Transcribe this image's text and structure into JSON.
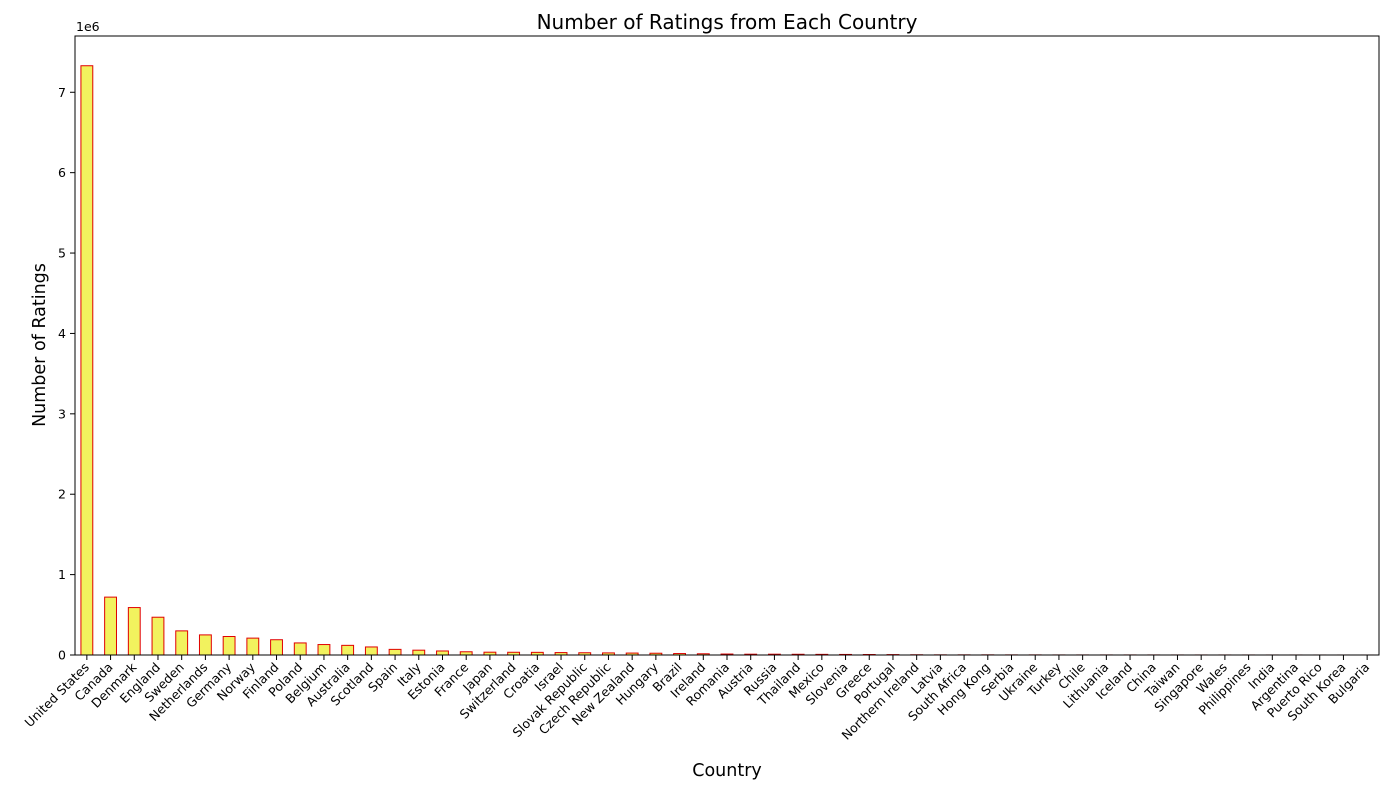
{
  "chart_data": {
    "type": "bar",
    "title": "Number of Ratings from Each Country",
    "xlabel": "Country",
    "ylabel": "Number of Ratings",
    "y_scale_label": "1e6",
    "ylim": [
      0,
      7.7
    ],
    "yticks": [
      "0",
      "1",
      "2",
      "3",
      "4",
      "5",
      "6",
      "7"
    ],
    "grid": false,
    "legend": "none",
    "bar_fill_color": "#f2f25e",
    "bar_edge_color": "#e00000",
    "categories": [
      "United States",
      "Canada",
      "Denmark",
      "England",
      "Sweden",
      "Netherlands",
      "Germany",
      "Norway",
      "Finland",
      "Poland",
      "Belgium",
      "Australia",
      "Scotland",
      "Spain",
      "Italy",
      "Estonia",
      "France",
      "Japan",
      "Switzerland",
      "Croatia",
      "Israel",
      "Slovak Republic",
      "Czech Republic",
      "New Zealand",
      "Hungary",
      "Brazil",
      "Ireland",
      "Romania",
      "Austria",
      "Russia",
      "Thailand",
      "Mexico",
      "Slovenia",
      "Greece",
      "Portugal",
      "Northern Ireland",
      "Latvia",
      "South Africa",
      "Hong Kong",
      "Serbia",
      "Ukraine",
      "Turkey",
      "Chile",
      "Lithuania",
      "Iceland",
      "China",
      "Taiwan",
      "Singapore",
      "Wales",
      "Philippines",
      "India",
      "Argentina",
      "Puerto Rico",
      "South Korea",
      "Bulgaria"
    ],
    "values": [
      7.33,
      0.72,
      0.59,
      0.47,
      0.3,
      0.25,
      0.23,
      0.21,
      0.19,
      0.15,
      0.13,
      0.12,
      0.1,
      0.07,
      0.06,
      0.05,
      0.04,
      0.035,
      0.034,
      0.033,
      0.03,
      0.028,
      0.026,
      0.024,
      0.022,
      0.018,
      0.015,
      0.012,
      0.01,
      0.01,
      0.009,
      0.008,
      0.007,
      0.006,
      0.005,
      0.003,
      0.002,
      0.002,
      0.002,
      0.0015,
      0.0015,
      0.001,
      0.001,
      0.001,
      0.001,
      0.001,
      0.0008,
      0.0008,
      0.0007,
      0.0006,
      0.0005,
      0.0005,
      0.0004,
      0.0004,
      0.0003
    ]
  }
}
